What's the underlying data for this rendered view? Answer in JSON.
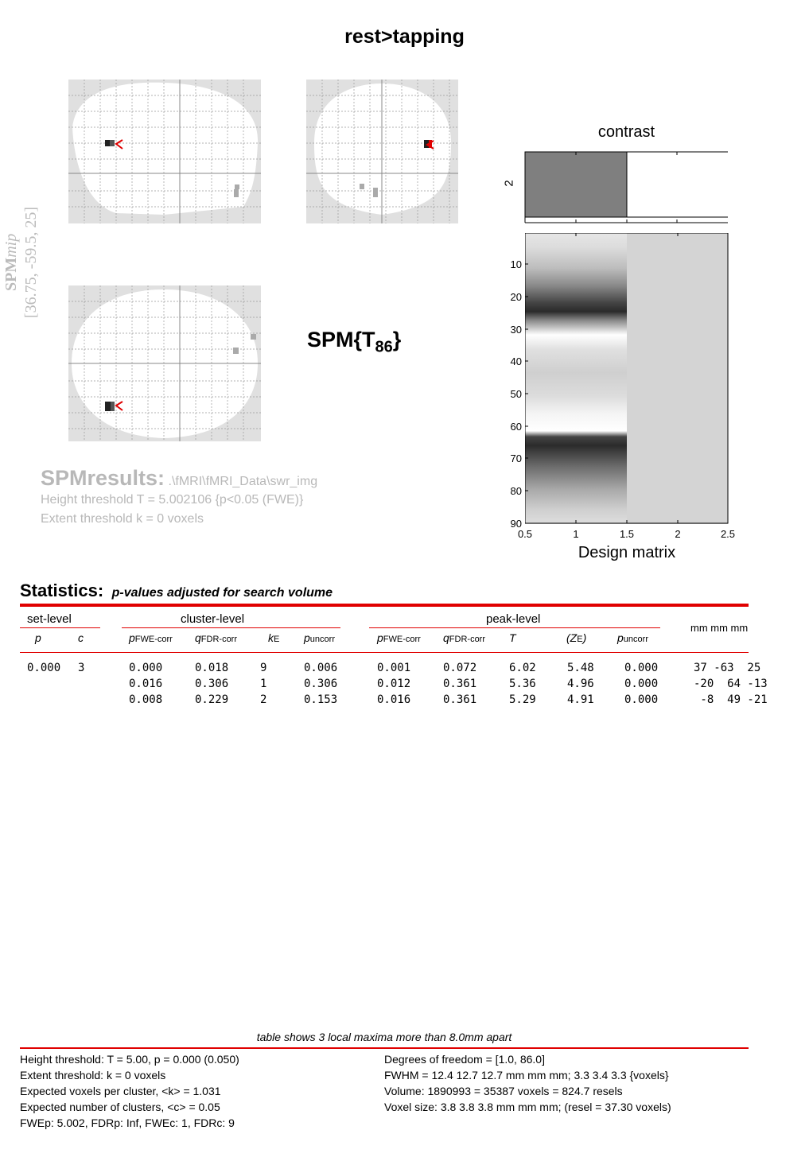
{
  "title": "rest>tapping",
  "mip_label": {
    "spm": "SPM",
    "mip": "mip",
    "coords": "[36.75, -59.5, 25]"
  },
  "spm_stat": {
    "main": "SPM{T",
    "df": "86",
    "close": "}"
  },
  "results": {
    "heading": "SPMresults:",
    "path": ".\\fMRI\\fMRI_Data\\swr_img",
    "height_threshold": "Height threshold T = 5.002106  {p<0.05 (FWE)}",
    "extent_threshold": "Extent threshold k = 0 voxels"
  },
  "contrast": {
    "title": "contrast",
    "ytick": "2"
  },
  "design_matrix": {
    "xlabel": "Design matrix",
    "xticks": [
      "0.5",
      "1",
      "1.5",
      "2",
      "2.5"
    ],
    "yticks": [
      "10",
      "20",
      "30",
      "40",
      "50",
      "60",
      "70",
      "80",
      "90"
    ]
  },
  "statistics": {
    "title": "Statistics:",
    "subtitle": "p-values adjusted for search volume",
    "groups": {
      "set": "set-level",
      "cluster": "cluster-level",
      "peak": "peak-level",
      "mm": "mm mm mm"
    },
    "rows": [
      [
        "0.000",
        "3",
        "0.000",
        "0.018",
        "9",
        "0.006",
        "0.001",
        "0.072",
        "6.02",
        "5.48",
        "0.000",
        "37 -63  25"
      ],
      [
        "",
        "",
        "0.016",
        "0.306",
        "1",
        "0.306",
        "0.012",
        "0.361",
        "5.36",
        "4.96",
        "0.000",
        "-20  64 -13"
      ],
      [
        "",
        "",
        "0.008",
        "0.229",
        "2",
        "0.153",
        "0.016",
        "0.361",
        "5.29",
        "4.91",
        "0.000",
        " -8  49 -21"
      ]
    ],
    "note": "table shows 3 local maxima more than 8.0mm apart"
  },
  "footer": {
    "left": [
      "Height threshold: T = 5.00, p = 0.000 (0.050)",
      "Extent threshold: k = 0 voxels",
      "Expected voxels per cluster, <k> = 1.031",
      "Expected number of clusters, <c> = 0.05",
      "FWEp: 5.002, FDRp: Inf, FWEc: 1, FDRc: 9"
    ],
    "right": [
      "Degrees of freedom = [1.0, 86.0]",
      "FWHM = 12.4 12.7 12.7 mm mm mm; 3.3 3.4 3.3 {voxels}",
      "Volume: 1890993 = 35387 voxels = 824.7 resels",
      "Voxel size: 3.8 3.8 3.8 mm mm mm; (resel = 37.30 voxels)"
    ]
  }
}
